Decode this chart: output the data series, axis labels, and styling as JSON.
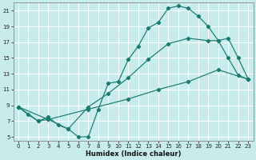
{
  "xlabel": "Humidex (Indice chaleur)",
  "bg_color": "#c8ecec",
  "grid_color": "#ffffff",
  "line_color": "#1a7a6e",
  "xlim": [
    -0.5,
    23.5
  ],
  "ylim": [
    4.5,
    22.0
  ],
  "xticks": [
    0,
    1,
    2,
    3,
    4,
    5,
    6,
    7,
    8,
    9,
    10,
    11,
    12,
    13,
    14,
    15,
    16,
    17,
    18,
    19,
    20,
    21,
    22,
    23
  ],
  "yticks": [
    5,
    7,
    9,
    11,
    13,
    15,
    17,
    19,
    21
  ],
  "curve1_x": [
    0,
    1,
    2,
    3,
    4,
    5,
    6,
    7,
    8,
    9,
    10,
    11,
    12,
    13,
    14,
    15,
    16,
    17,
    18,
    19,
    20,
    21,
    22,
    23
  ],
  "curve1_y": [
    8.8,
    7.8,
    7.0,
    7.5,
    6.5,
    6.0,
    5.0,
    5.0,
    8.5,
    11.8,
    12.0,
    14.8,
    16.5,
    18.8,
    19.5,
    21.3,
    21.6,
    21.3,
    20.3,
    19.0,
    17.2,
    15.0,
    12.8,
    12.3
  ],
  "curve2_x": [
    0,
    2,
    3,
    5,
    7,
    9,
    11,
    13,
    15,
    17,
    19,
    20,
    21,
    22,
    23
  ],
  "curve2_y": [
    8.8,
    7.0,
    7.2,
    6.0,
    8.8,
    10.5,
    12.5,
    14.8,
    16.8,
    17.5,
    17.2,
    17.2,
    17.5,
    15.0,
    12.3
  ],
  "curve3_x": [
    0,
    3,
    7,
    11,
    14,
    17,
    20,
    23
  ],
  "curve3_y": [
    8.8,
    7.2,
    8.5,
    9.8,
    11.0,
    12.0,
    13.5,
    12.3
  ]
}
